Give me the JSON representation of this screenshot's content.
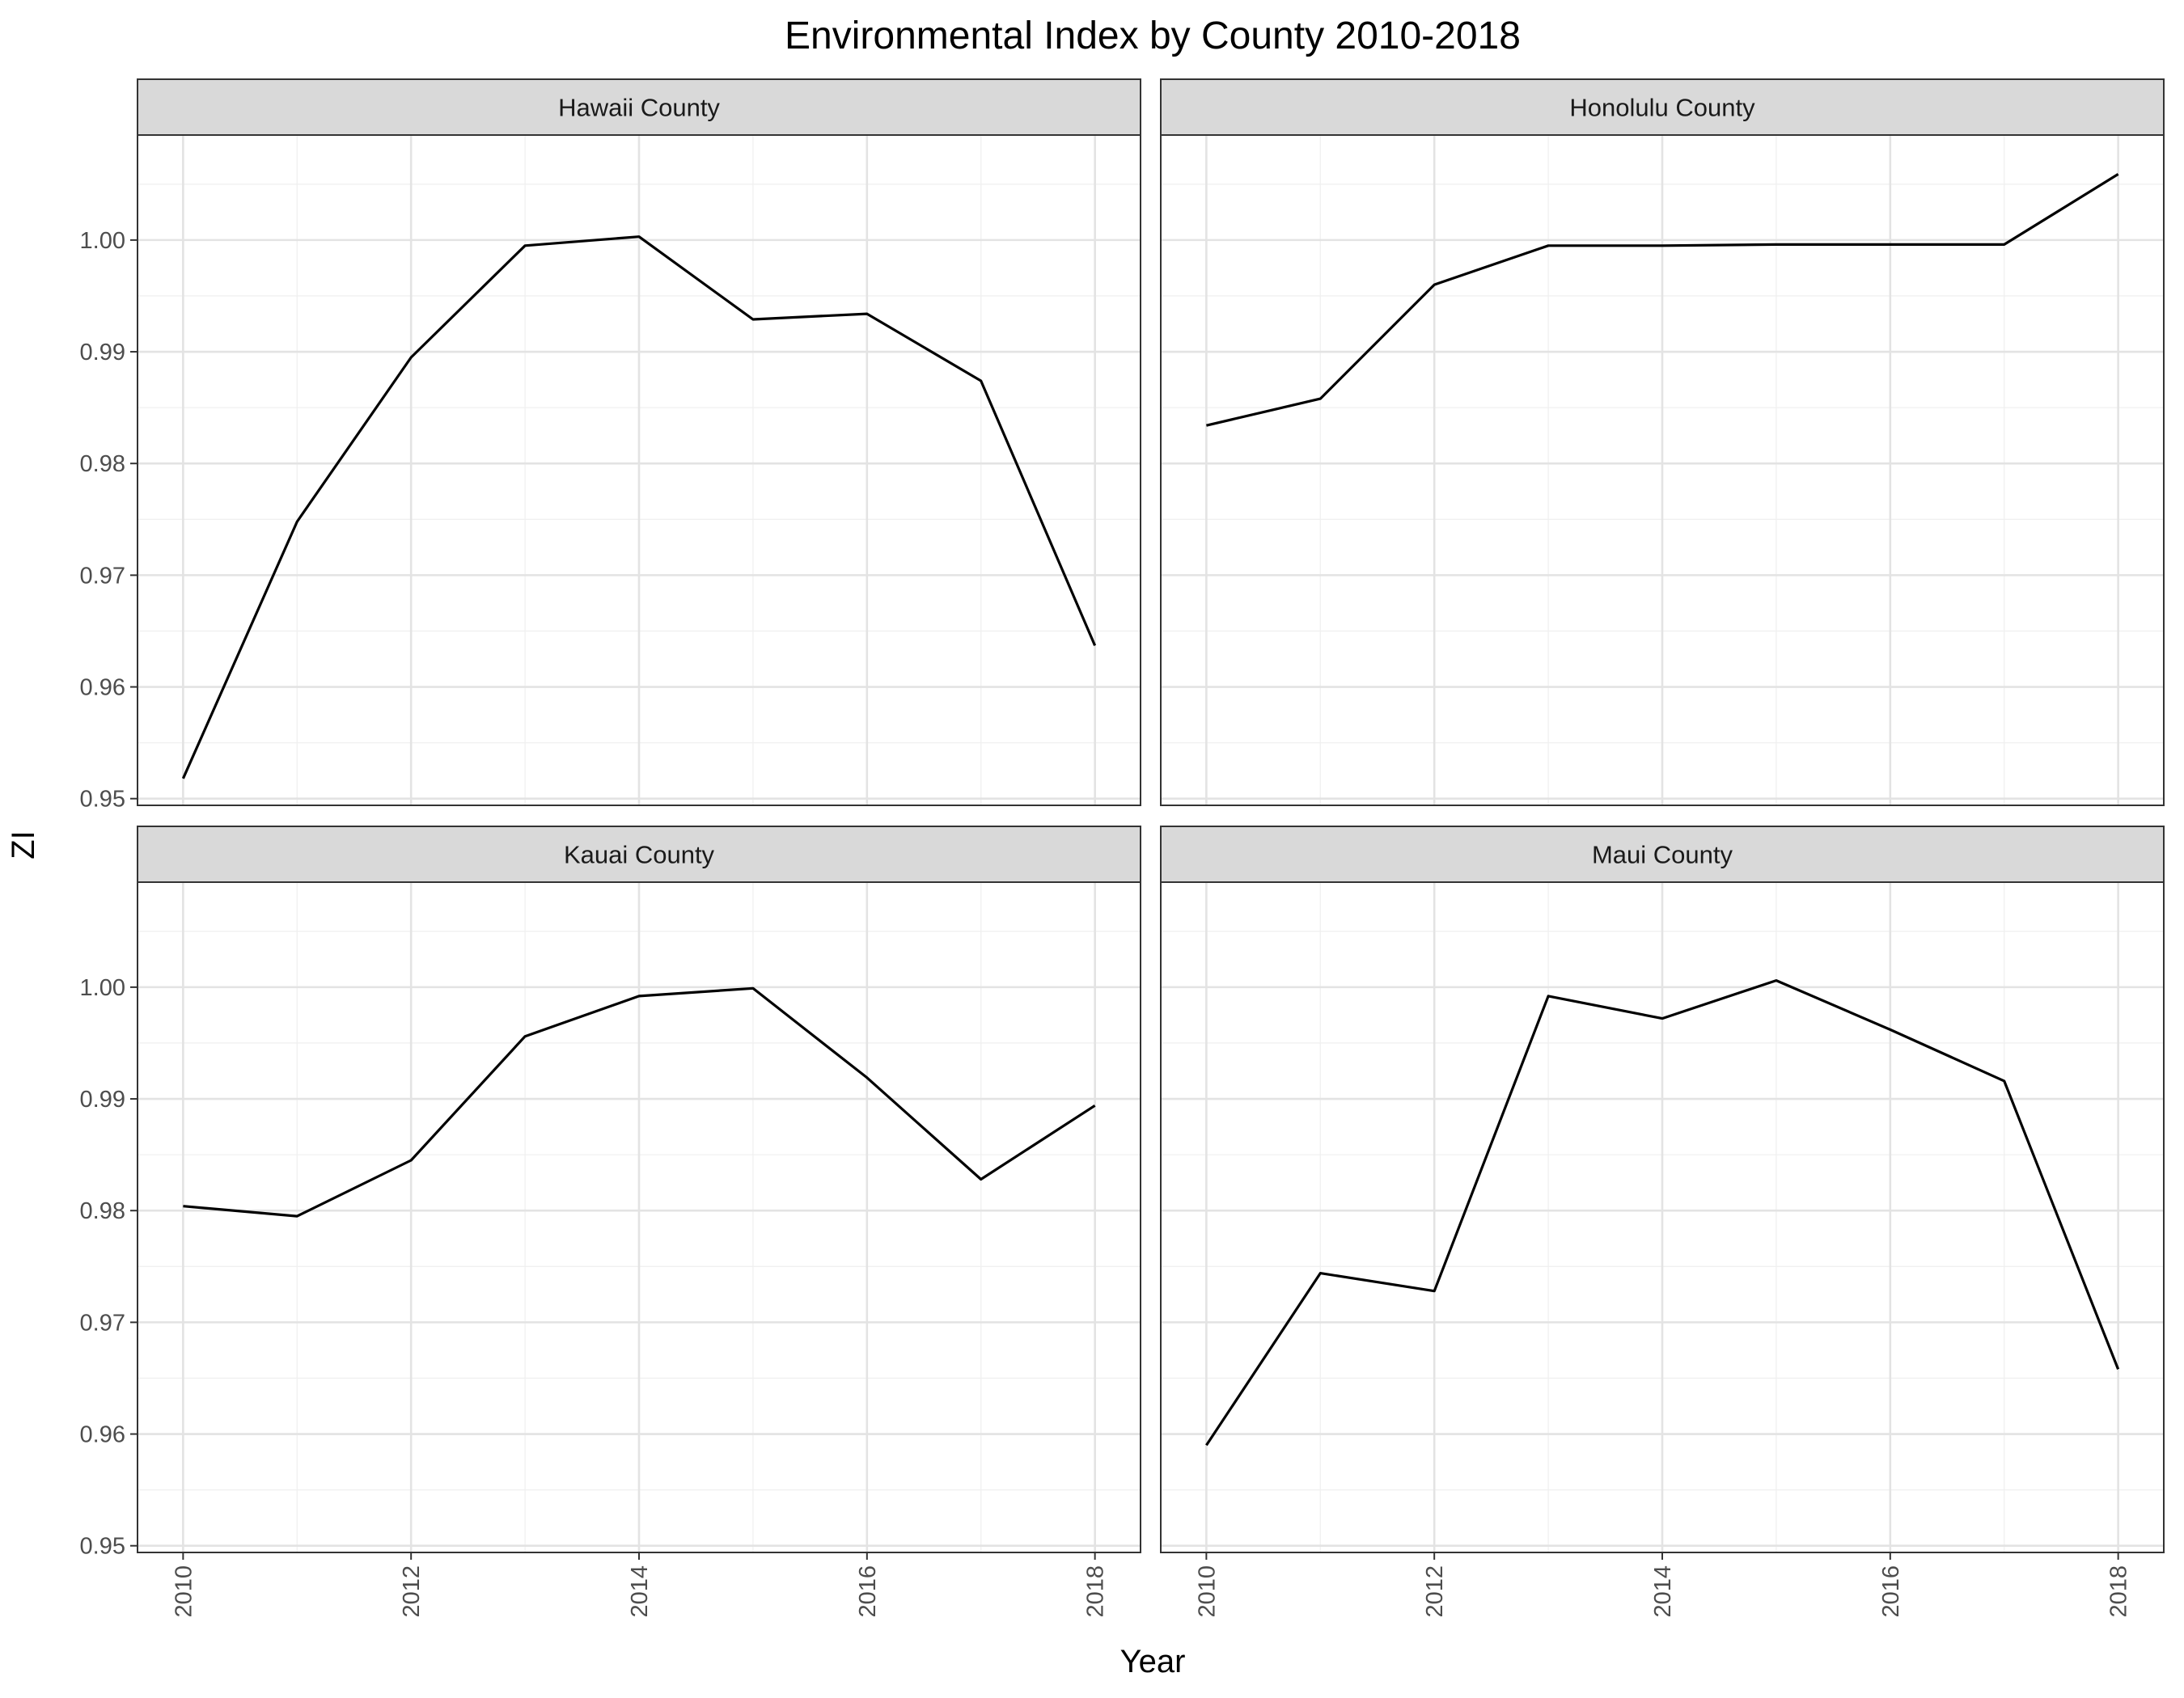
{
  "chart_data": {
    "type": "line",
    "title": "Environmental Index by County 2010-2018",
    "xlabel": "Year",
    "ylabel": "ZI",
    "xlim": [
      2009.6,
      2018.4
    ],
    "ylim": [
      0.9494,
      1.0094
    ],
    "x_ticks": [
      2010,
      2012,
      2014,
      2016,
      2018
    ],
    "x_tick_labels": [
      "2010",
      "2012",
      "2014",
      "2016",
      "2018"
    ],
    "y_ticks": [
      0.95,
      0.96,
      0.97,
      0.98,
      0.99,
      1.0
    ],
    "y_tick_labels": [
      "0.95",
      "0.96",
      "0.97",
      "0.98",
      "0.99",
      "1.00"
    ],
    "grid": true,
    "legend": "none",
    "line_color": "#000000",
    "strip_color": "#d9d9d9",
    "x": [
      2010,
      2011,
      2012,
      2013,
      2014,
      2015,
      2016,
      2017,
      2018
    ],
    "series": [
      {
        "name": "Hawaii County",
        "values": [
          0.9518,
          0.9748,
          0.9895,
          0.9995,
          1.0003,
          0.9929,
          0.9934,
          0.9874,
          0.9637
        ]
      },
      {
        "name": "Honolulu County",
        "values": [
          0.9834,
          0.9858,
          0.996,
          0.9995,
          0.9995,
          0.9996,
          0.9996,
          0.9996,
          1.0059
        ]
      },
      {
        "name": "Kauai County",
        "values": [
          0.9804,
          0.9795,
          0.9845,
          0.9956,
          0.9992,
          0.9999,
          0.9919,
          0.9828,
          0.9894
        ]
      },
      {
        "name": "Maui County",
        "values": [
          0.959,
          0.9744,
          0.9728,
          0.9992,
          0.9972,
          1.0006,
          0.9962,
          0.9916,
          0.9658
        ]
      }
    ]
  }
}
